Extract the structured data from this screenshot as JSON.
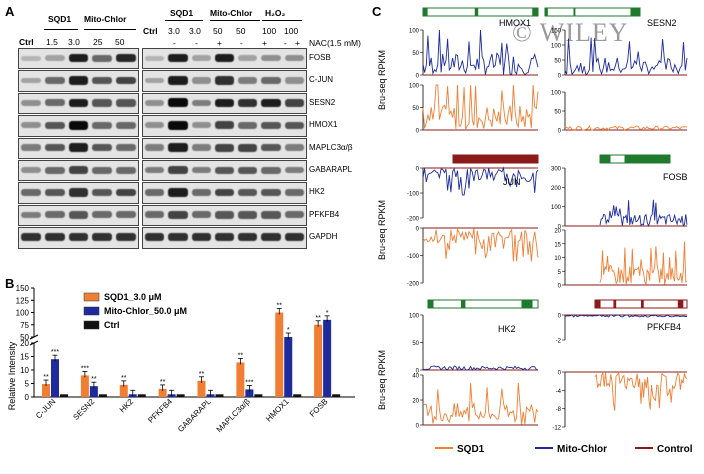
{
  "watermark": "© WILEY",
  "panel_a": {
    "letter": "A",
    "left_blot": {
      "groups": [
        "SQD1",
        "Mito-Chlor"
      ],
      "lane_labels": [
        "Ctrl",
        "1.5",
        "3.0",
        "25",
        "50"
      ]
    },
    "right_blot": {
      "groups": [
        "SQD1",
        "Mito-Chlor",
        "H₂O₂"
      ],
      "lane_labels": [
        "Ctrl",
        "3.0",
        "3.0",
        "50",
        "50",
        "100",
        "100"
      ],
      "nac_signs": [
        "-",
        "-",
        "+",
        "-",
        "+",
        "-",
        "+"
      ],
      "nac_label": "NAC(1.5 mM)"
    },
    "rows": [
      "FOSB",
      "C-JUN",
      "SESN2",
      "HMOX1",
      "MAPLC3α/β",
      "GABARAPL",
      "HK2",
      "PFKFB4",
      "GAPDH"
    ]
  },
  "panel_b": {
    "letter": "B",
    "chart_data": {
      "type": "bar",
      "categories": [
        "C-JUN",
        "SESN2",
        "HK2",
        "PFKFB4",
        "GABARAPL",
        "MAPLC3α/β",
        "HMOX1",
        "FOSB"
      ],
      "series": [
        {
          "name": "SQD1_3.0 μM",
          "color": "#f07f34",
          "values": [
            4.8,
            8,
            4.5,
            3,
            6,
            12.8,
            100,
            75
          ]
        },
        {
          "name": "Mito-Chlor_50.0 μM",
          "color": "#1d2b9c",
          "values": [
            14,
            4,
            1,
            1,
            1,
            2.8,
            50,
            85
          ]
        },
        {
          "name": "Ctrl",
          "color": "#111111",
          "values": [
            1,
            1,
            1,
            1,
            1,
            1,
            1,
            1
          ]
        }
      ],
      "ylabel": "Relative Intensity",
      "y_ticks_lower": [
        "0",
        "5",
        "10",
        "15",
        "20"
      ],
      "y_ticks_upper": [
        "50",
        "75",
        "100",
        "125",
        "150"
      ],
      "ylim_lower": [
        0,
        20
      ],
      "ylim_upper": [
        50,
        150
      ],
      "broken_axis": true,
      "significance": [
        [
          "**",
          "***",
          ""
        ],
        [
          "***",
          "**",
          ""
        ],
        [
          "**",
          "",
          ""
        ],
        [
          "**",
          "",
          ""
        ],
        [
          "**",
          "",
          ""
        ],
        [
          "**",
          "***",
          ""
        ],
        [
          "**",
          "*",
          ""
        ],
        [
          "**",
          "*",
          ""
        ]
      ]
    }
  },
  "panel_c": {
    "letter": "C",
    "ylabel": "Bru-seq RPKM",
    "genes": [
      "HMOX1",
      "SESN2",
      "JUN",
      "FOSB",
      "HK2",
      "PFKFB4"
    ],
    "tick_sets": {
      "hmox1_top": [
        "100",
        "50",
        "0"
      ],
      "hmox1_bottom": [
        "100",
        "50",
        "0"
      ],
      "sesn2_top": [
        "150",
        "100",
        "50",
        "0"
      ],
      "sesn2_bottom": [
        "100",
        "50",
        "0"
      ],
      "jun_top": [
        "0",
        "-100",
        "-200"
      ],
      "jun_bottom": [
        "0",
        "-100",
        "-200"
      ],
      "fosb_top": [
        "300",
        "200",
        "100",
        "0"
      ],
      "fosb_bottom": [
        "20",
        "15",
        "10",
        "5",
        "0"
      ],
      "hk2_top": [
        "100",
        "50",
        "0"
      ],
      "hk2_bottom": [
        "40",
        "20",
        "0"
      ],
      "pfkfb4_top": [
        "0",
        "-2"
      ],
      "pfkfb4_bottom": [
        "0",
        "-4",
        "-8",
        "-12"
      ]
    },
    "legend": [
      {
        "name": "SQD1",
        "color": "#f07f34"
      },
      {
        "name": "Mito-Chlor",
        "color": "#1d2b9c"
      },
      {
        "name": "Control",
        "color": "#8b1a1a"
      }
    ]
  }
}
